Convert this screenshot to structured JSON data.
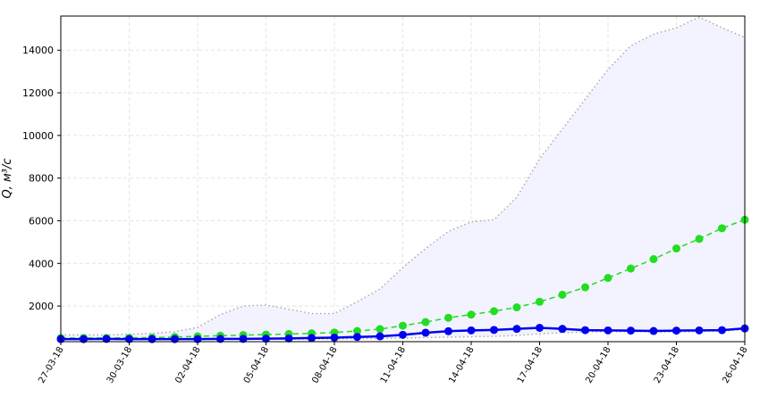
{
  "chart_data": {
    "type": "line",
    "ylabel": "Q, м³/с",
    "categories": [
      "27-03-18",
      null,
      null,
      "30-03-18",
      null,
      null,
      "02-04-18",
      null,
      null,
      "05-04-18",
      null,
      null,
      "08-04-18",
      null,
      null,
      "11-04-18",
      null,
      null,
      "14-04-18",
      null,
      null,
      "17-04-18",
      null,
      null,
      "20-04-18",
      null,
      null,
      "23-04-18",
      null,
      null,
      "26-04-18"
    ],
    "series": [
      {
        "color": "#aaaaaa",
        "style": "dotted",
        "markers": false,
        "values": [
          650,
          650,
          650,
          680,
          720,
          800,
          1000,
          1600,
          2000,
          2050,
          1850,
          1650,
          1650,
          2200,
          2800,
          3800,
          4700,
          5500,
          5950,
          6050,
          7100,
          8900,
          10300,
          11700,
          13100,
          14200,
          14750,
          15050,
          15550,
          15050,
          14600
        ]
      },
      {
        "color": "#aaaaaa",
        "style": "dotted",
        "markers": false,
        "values": [
          450,
          450,
          450,
          450,
          450,
          450,
          450,
          450,
          450,
          450,
          450,
          450,
          460,
          470,
          480,
          500,
          520,
          540,
          560,
          580,
          620,
          700,
          750,
          780,
          800,
          800,
          790,
          780,
          800,
          830,
          900
        ]
      },
      {
        "color": "#22dd22",
        "style": "dashed",
        "markers": true,
        "values": [
          500,
          500,
          500,
          510,
          520,
          550,
          580,
          610,
          640,
          660,
          690,
          720,
          760,
          830,
          920,
          1080,
          1250,
          1450,
          1600,
          1760,
          1940,
          2200,
          2530,
          2880,
          3320,
          3760,
          4200,
          4700,
          5150,
          5650,
          6050
        ]
      },
      {
        "color": "#0000ee",
        "style": "solid",
        "markers": true,
        "values": [
          450,
          450,
          460,
          450,
          450,
          450,
          450,
          460,
          460,
          470,
          480,
          500,
          520,
          550,
          580,
          650,
          750,
          820,
          860,
          880,
          930,
          980,
          930,
          870,
          860,
          850,
          830,
          850,
          860,
          870,
          950
        ]
      }
    ],
    "area_fill": "#f3f3ff",
    "ylim": [
      330,
      15600
    ],
    "yticks": [
      2000,
      4000,
      6000,
      8000,
      10000,
      12000,
      14000
    ],
    "grid": true
  }
}
